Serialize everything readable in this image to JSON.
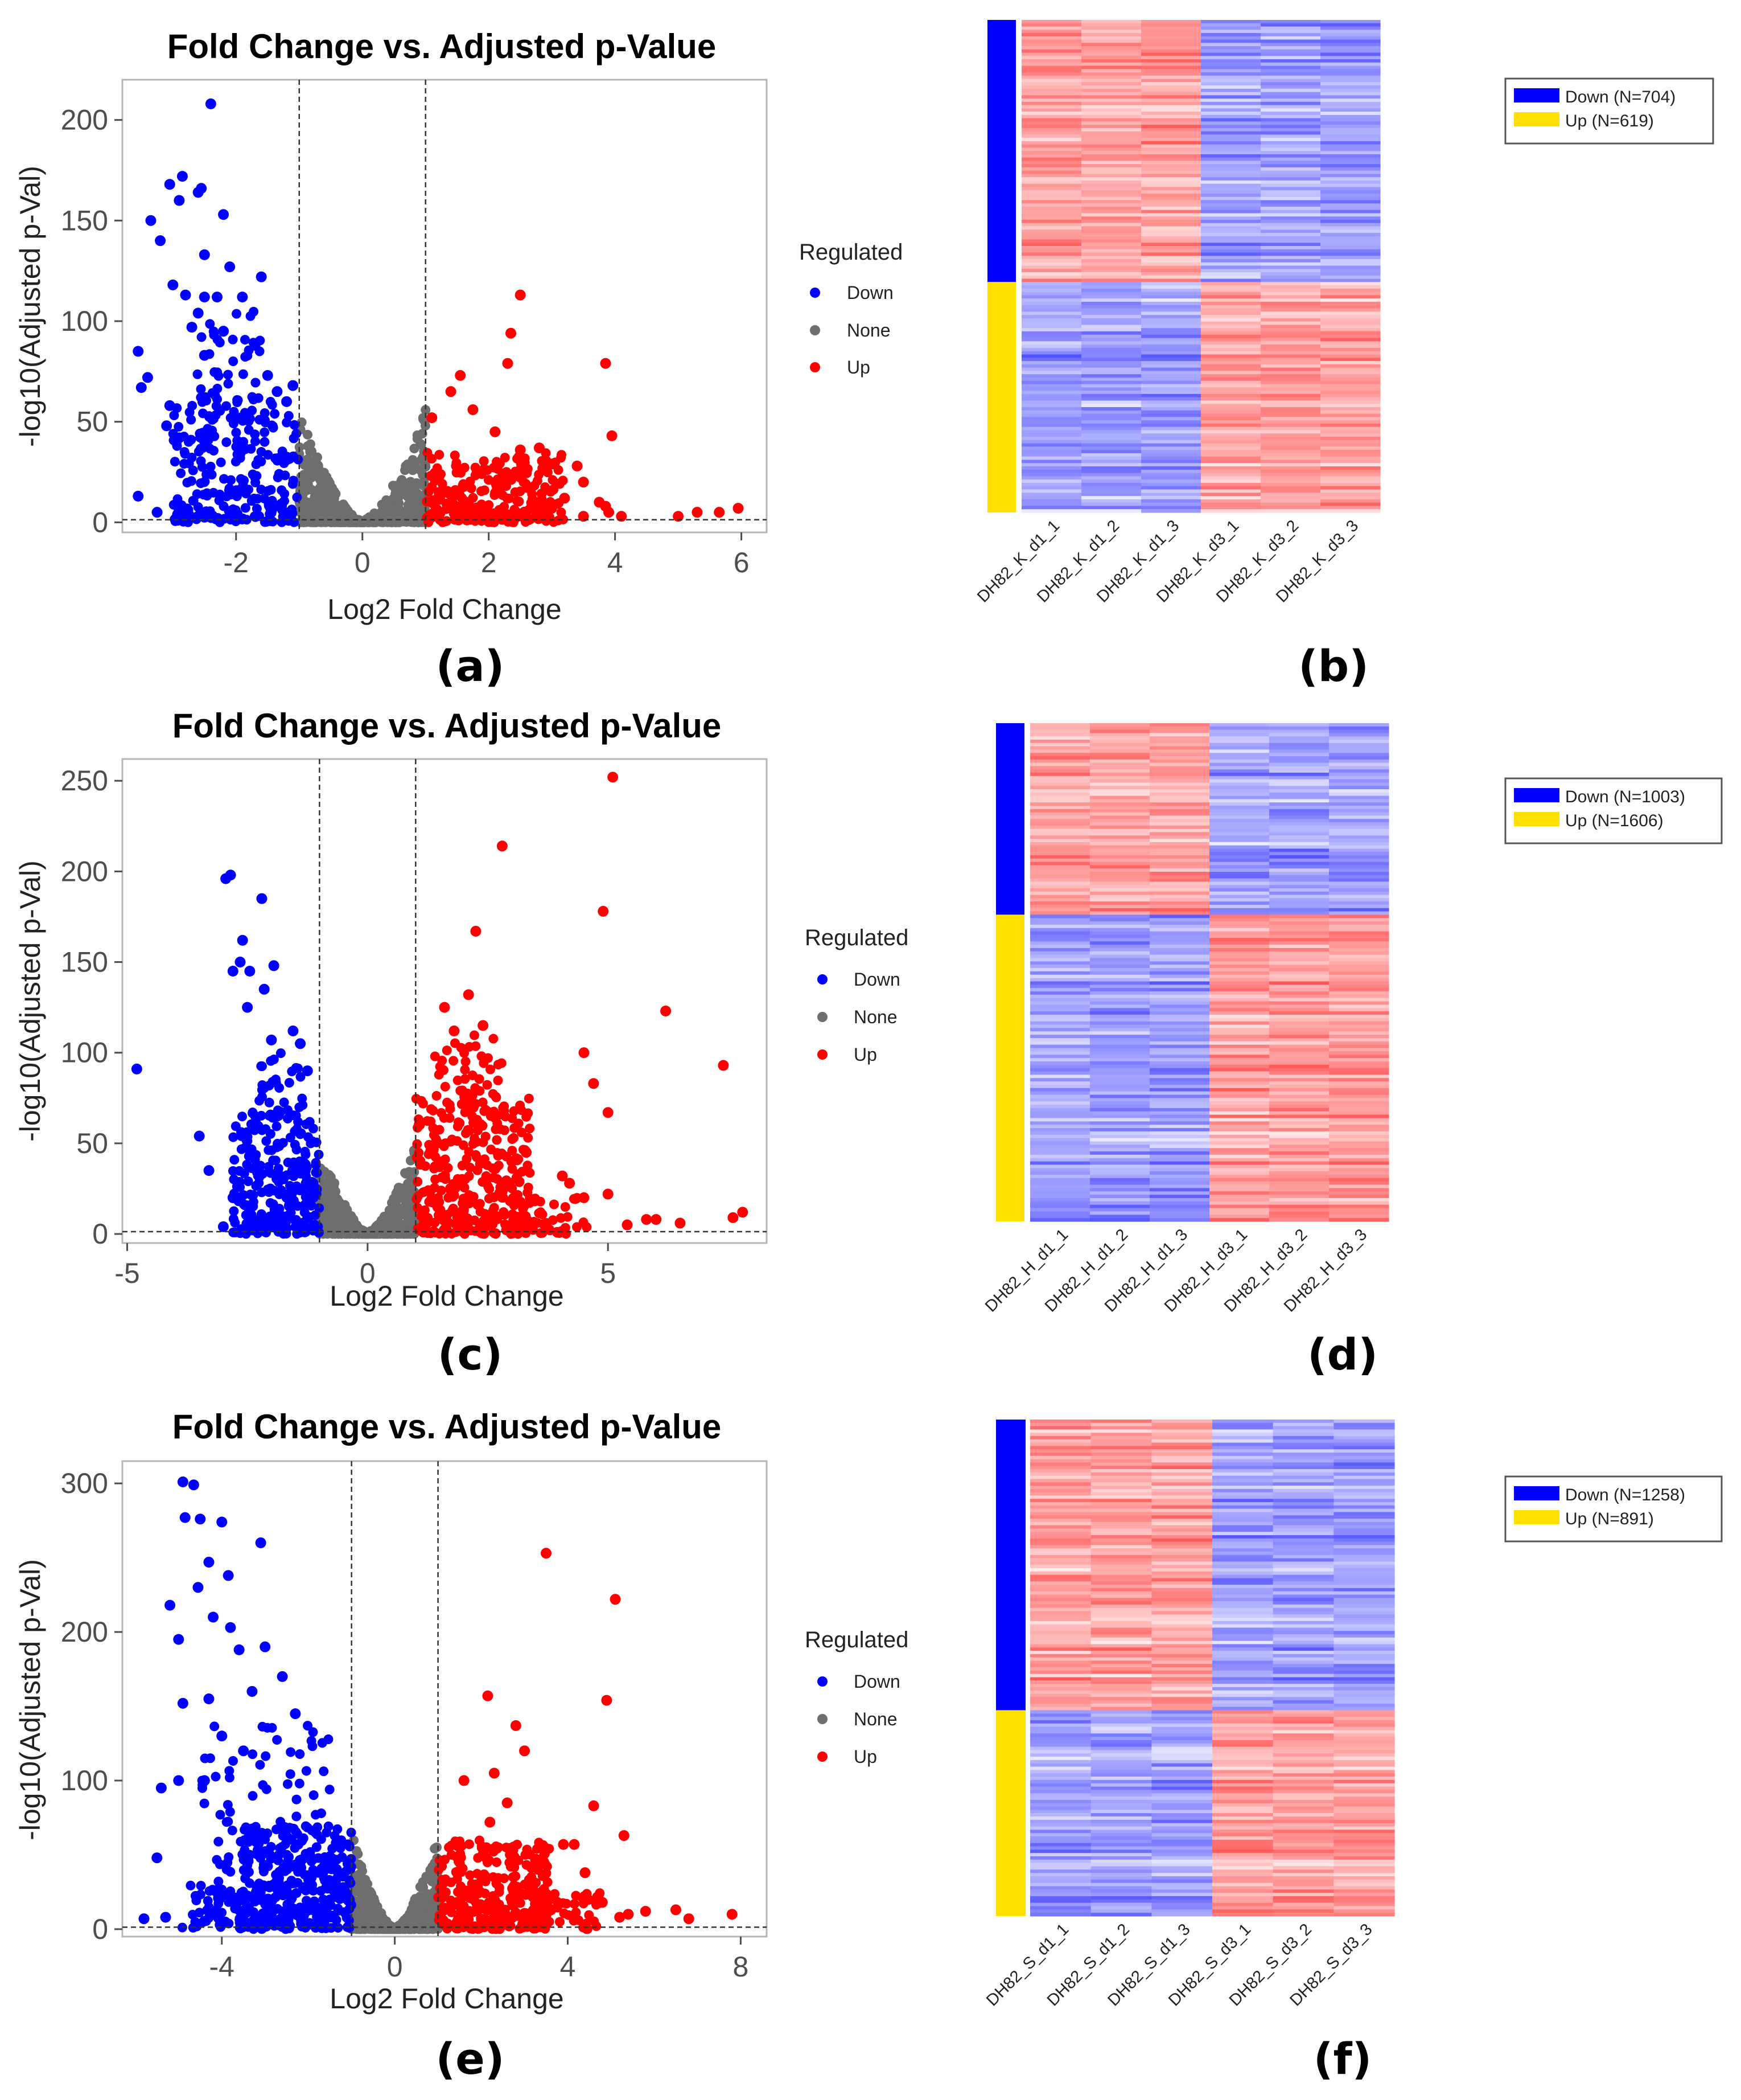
{
  "figure": {
    "labels": [
      "(a)",
      "(b)",
      "(c)",
      "(d)",
      "(e)",
      "(f)"
    ]
  },
  "chart_data": [
    {
      "type": "scatter",
      "panel": "(a)",
      "title": "Fold Change vs. Adjusted p-Value",
      "xlabel": "Log2 Fold Change",
      "ylabel": "-log10(Adjusted p-Val)",
      "xlim": [
        -3.8,
        6.4
      ],
      "ylim": [
        -5,
        220
      ],
      "xticks": [
        -2,
        0,
        2,
        4,
        6
      ],
      "yticks": [
        0,
        50,
        100,
        150,
        200
      ],
      "fc_threshold": 1,
      "padj_line": 1.3,
      "legend_title": "Regulated",
      "legend": [
        "Down",
        "None",
        "Up"
      ],
      "colors": {
        "Down": "#0000ff",
        "None": "#6e6e6e",
        "Up": "#ff0000"
      },
      "series": [
        {
          "name": "Down",
          "points": [
            [
              -2.4,
              208
            ],
            [
              -2.85,
              172
            ],
            [
              -3.05,
              168
            ],
            [
              -2.55,
              166
            ],
            [
              -2.6,
              164
            ],
            [
              -2.9,
              160
            ],
            [
              -3.35,
              150
            ],
            [
              -2.2,
              153
            ],
            [
              -3.2,
              140
            ],
            [
              -2.5,
              133
            ],
            [
              -2.1,
              127
            ],
            [
              -1.6,
              122
            ],
            [
              -2.3,
              112
            ],
            [
              -2.8,
              113
            ],
            [
              -2.5,
              112
            ],
            [
              -3.0,
              118
            ],
            [
              -1.9,
              112
            ],
            [
              -2.6,
              104
            ],
            [
              -2.7,
              97
            ],
            [
              -2.2,
              95
            ],
            [
              -3.55,
              85
            ],
            [
              -1.7,
              88
            ],
            [
              -2.5,
              83
            ],
            [
              -3.4,
              72
            ],
            [
              -3.5,
              67
            ],
            [
              -1.5,
              73
            ],
            [
              -1.35,
              65
            ],
            [
              -3.05,
              58
            ],
            [
              -3.1,
              48
            ],
            [
              -2.9,
              42
            ],
            [
              -3.55,
              13
            ],
            [
              -3.25,
              5
            ],
            [
              -2.9,
              8
            ],
            [
              -2.6,
              3
            ],
            [
              -1.2,
              60
            ],
            [
              -1.1,
              68
            ]
          ],
          "bulk": [
            {
              "x0": -3.0,
              "x1": -1.0,
              "y0": 0,
              "y1": 60,
              "n": 240
            },
            {
              "x0": -2.7,
              "x1": -1.6,
              "y0": 60,
              "y1": 110,
              "n": 40
            }
          ]
        },
        {
          "name": "None",
          "points": [],
          "bulk": [
            {
              "shape": "volcano",
              "x0": -1.0,
              "x1": 1.0,
              "ymax": 55,
              "n": 700
            }
          ]
        },
        {
          "name": "Up",
          "points": [
            [
              2.5,
              113
            ],
            [
              2.35,
              94
            ],
            [
              2.3,
              79
            ],
            [
              1.55,
              73
            ],
            [
              1.4,
              65
            ],
            [
              3.85,
              79
            ],
            [
              1.1,
              52
            ],
            [
              1.75,
              56
            ],
            [
              3.95,
              43
            ],
            [
              2.1,
              45
            ],
            [
              2.5,
              36
            ],
            [
              2.8,
              37
            ],
            [
              3.0,
              29
            ],
            [
              3.4,
              28
            ],
            [
              3.5,
              20
            ],
            [
              3.2,
              12
            ],
            [
              3.85,
              8
            ],
            [
              3.75,
              10
            ],
            [
              5.0,
              3
            ],
            [
              5.3,
              5
            ],
            [
              5.65,
              5
            ],
            [
              5.95,
              7
            ],
            [
              4.1,
              3
            ],
            [
              3.9,
              5
            ],
            [
              3.5,
              3
            ]
          ],
          "bulk": [
            {
              "x0": 1.0,
              "x1": 3.2,
              "y0": 0,
              "y1": 35,
              "n": 240
            }
          ]
        }
      ]
    },
    {
      "type": "heatmap",
      "panel": "(b)",
      "samples": [
        "DH82_K_d1_1",
        "DH82_K_d1_2",
        "DH82_K_d1_3",
        "DH82_K_d3_1",
        "DH82_K_d3_2",
        "DH82_K_d3_3"
      ],
      "groups": [
        {
          "name": "Down",
          "n": 704,
          "color": "#0000ff",
          "label": "Down (N=704)",
          "pattern": [
            "high",
            "high",
            "high",
            "low",
            "low",
            "low"
          ]
        },
        {
          "name": "Up",
          "n": 619,
          "color": "#ffe000",
          "label": "Up (N=619)",
          "pattern": [
            "low",
            "low",
            "low",
            "high",
            "high",
            "high"
          ]
        }
      ],
      "low_color": "#3d3dff",
      "high_color": "#ff4040"
    },
    {
      "type": "scatter",
      "panel": "(c)",
      "title": "Fold Change vs. Adjusted p-Value",
      "xlabel": "Log2 Fold Change",
      "ylabel": "-log10(Adjusted p-Val)",
      "xlim": [
        -5.1,
        8.3
      ],
      "ylim": [
        -5,
        262
      ],
      "xticks": [
        -5,
        0,
        5
      ],
      "yticks": [
        0,
        50,
        100,
        150,
        200,
        250
      ],
      "fc_threshold": 1,
      "padj_line": 1.3,
      "legend_title": "Regulated",
      "legend": [
        "Down",
        "None",
        "Up"
      ],
      "colors": {
        "Down": "#0000ff",
        "None": "#6e6e6e",
        "Up": "#ff0000"
      },
      "series": [
        {
          "name": "Down",
          "points": [
            [
              -2.85,
              198
            ],
            [
              -2.95,
              196
            ],
            [
              -2.2,
              185
            ],
            [
              -2.6,
              162
            ],
            [
              -2.65,
              150
            ],
            [
              -2.8,
              145
            ],
            [
              -2.45,
              145
            ],
            [
              -1.95,
              148
            ],
            [
              -2.15,
              135
            ],
            [
              -2.5,
              125
            ],
            [
              -1.55,
              112
            ],
            [
              -2.0,
              107
            ],
            [
              -4.8,
              91
            ],
            [
              -3.5,
              54
            ],
            [
              -3.3,
              35
            ],
            [
              -2.8,
              20
            ],
            [
              -3.0,
              4
            ],
            [
              -1.4,
              105
            ],
            [
              -1.25,
              90
            ]
          ],
          "bulk": [
            {
              "x0": -2.8,
              "x1": -1.0,
              "y0": 0,
              "y1": 65,
              "n": 240
            },
            {
              "x0": -2.4,
              "x1": -1.3,
              "y0": 65,
              "y1": 100,
              "n": 40
            }
          ]
        },
        {
          "name": "None",
          "points": [],
          "bulk": [
            {
              "shape": "volcano",
              "x0": -1.0,
              "x1": 1.0,
              "ymax": 50,
              "n": 700
            }
          ]
        },
        {
          "name": "Up",
          "points": [
            [
              5.1,
              252
            ],
            [
              2.8,
              214
            ],
            [
              4.9,
              178
            ],
            [
              2.25,
              167
            ],
            [
              6.2,
              123
            ],
            [
              2.1,
              132
            ],
            [
              4.5,
              100
            ],
            [
              4.7,
              83
            ],
            [
              7.4,
              93
            ],
            [
              5.0,
              67
            ],
            [
              3.3,
              45
            ],
            [
              3.0,
              40
            ],
            [
              4.05,
              32
            ],
            [
              4.2,
              28
            ],
            [
              5.0,
              22
            ],
            [
              4.5,
              20
            ],
            [
              5.8,
              8
            ],
            [
              6.0,
              8
            ],
            [
              6.5,
              6
            ],
            [
              7.6,
              9
            ],
            [
              7.8,
              12
            ],
            [
              5.4,
              5
            ],
            [
              1.8,
              112
            ],
            [
              2.4,
              115
            ],
            [
              1.6,
              125
            ]
          ],
          "bulk": [
            {
              "x0": 1.0,
              "x1": 3.4,
              "y0": 0,
              "y1": 75,
              "n": 320
            },
            {
              "x0": 1.2,
              "x1": 2.8,
              "y0": 75,
              "y1": 110,
              "n": 40
            },
            {
              "x0": 3.0,
              "x1": 4.6,
              "y0": 0,
              "y1": 20,
              "n": 50
            }
          ]
        }
      ]
    },
    {
      "type": "heatmap",
      "panel": "(d)",
      "samples": [
        "DH82_H_d1_1",
        "DH82_H_d1_2",
        "DH82_H_d1_3",
        "DH82_H_d3_1",
        "DH82_H_d3_2",
        "DH82_H_d3_3"
      ],
      "groups": [
        {
          "name": "Down",
          "n": 1003,
          "color": "#0000ff",
          "label": "Down (N=1003)",
          "pattern": [
            "high",
            "high",
            "high",
            "low",
            "low",
            "low"
          ]
        },
        {
          "name": "Up",
          "n": 1606,
          "color": "#ffe000",
          "label": "Up (N=1606)",
          "pattern": [
            "low",
            "low",
            "low",
            "high",
            "high",
            "high"
          ]
        }
      ],
      "low_color": "#3d3dff",
      "high_color": "#ff4040"
    },
    {
      "type": "scatter",
      "panel": "(e)",
      "title": "Fold Change vs. Adjusted p-Value",
      "xlabel": "Log2 Fold Change",
      "ylabel": "-log10(Adjusted p-Val)",
      "xlim": [
        -6.3,
        8.6
      ],
      "ylim": [
        -5,
        315
      ],
      "xticks": [
        -4,
        0,
        4,
        8
      ],
      "yticks": [
        0,
        100,
        200,
        300
      ],
      "fc_threshold": 1,
      "padj_line": 1.3,
      "legend_title": "Regulated",
      "legend": [
        "Down",
        "None",
        "Up"
      ],
      "colors": {
        "Down": "#0000ff",
        "None": "#6e6e6e",
        "Up": "#ff0000"
      },
      "series": [
        {
          "name": "Down",
          "points": [
            [
              -4.9,
              301
            ],
            [
              -4.65,
              299
            ],
            [
              -4.85,
              277
            ],
            [
              -4.5,
              276
            ],
            [
              -4.0,
              274
            ],
            [
              -3.1,
              260
            ],
            [
              -4.3,
              247
            ],
            [
              -3.85,
              238
            ],
            [
              -4.55,
              230
            ],
            [
              -5.2,
              218
            ],
            [
              -4.2,
              210
            ],
            [
              -3.8,
              203
            ],
            [
              -5.0,
              195
            ],
            [
              -3.0,
              190
            ],
            [
              -3.6,
              188
            ],
            [
              -4.9,
              152
            ],
            [
              -4.3,
              155
            ],
            [
              -5.5,
              48
            ],
            [
              -5.4,
              95
            ],
            [
              -5.8,
              7
            ],
            [
              -5.3,
              8
            ],
            [
              -3.3,
              160
            ],
            [
              -2.6,
              170
            ],
            [
              -2.3,
              145
            ],
            [
              -4.0,
              130
            ],
            [
              -3.5,
              120
            ],
            [
              -5.0,
              100
            ],
            [
              -4.4,
              100
            ]
          ],
          "bulk": [
            {
              "x0": -3.6,
              "x1": -1.0,
              "y0": 0,
              "y1": 70,
              "n": 320
            },
            {
              "x0": -4.5,
              "x1": -1.5,
              "y0": 0,
              "y1": 140,
              "n": 120
            },
            {
              "x0": -5.0,
              "x1": -3.5,
              "y0": 0,
              "y1": 30,
              "n": 30
            }
          ]
        },
        {
          "name": "None",
          "points": [],
          "bulk": [
            {
              "shape": "volcano",
              "x0": -1.0,
              "x1": 1.0,
              "ymax": 65,
              "n": 700
            }
          ]
        },
        {
          "name": "Up",
          "points": [
            [
              3.5,
              253
            ],
            [
              5.1,
              222
            ],
            [
              2.15,
              157
            ],
            [
              4.9,
              154
            ],
            [
              2.8,
              137
            ],
            [
              3.0,
              120
            ],
            [
              2.3,
              105
            ],
            [
              1.6,
              100
            ],
            [
              4.6,
              83
            ],
            [
              3.9,
              57
            ],
            [
              4.15,
              57
            ],
            [
              4.4,
              38
            ],
            [
              5.3,
              63
            ],
            [
              2.2,
              72
            ],
            [
              2.6,
              85
            ],
            [
              5.4,
              10
            ],
            [
              5.8,
              12
            ],
            [
              6.5,
              13
            ],
            [
              6.8,
              7
            ],
            [
              7.8,
              10
            ],
            [
              5.2,
              8
            ],
            [
              4.8,
              18
            ]
          ],
          "bulk": [
            {
              "x0": 1.0,
              "x1": 3.6,
              "y0": 0,
              "y1": 60,
              "n": 300
            },
            {
              "x0": 3.4,
              "x1": 4.8,
              "y0": 0,
              "y1": 25,
              "n": 40
            }
          ]
        }
      ]
    },
    {
      "type": "heatmap",
      "panel": "(f)",
      "samples": [
        "DH82_S_d1_1",
        "DH82_S_d1_2",
        "DH82_S_d1_3",
        "DH82_S_d3_1",
        "DH82_S_d3_2",
        "DH82_S_d3_3"
      ],
      "groups": [
        {
          "name": "Down",
          "n": 1258,
          "color": "#0000ff",
          "label": "Down (N=1258)",
          "pattern": [
            "high",
            "high",
            "high",
            "low",
            "low",
            "low"
          ]
        },
        {
          "name": "Up",
          "n": 891,
          "color": "#ffe000",
          "label": "Up (N=891)",
          "pattern": [
            "low",
            "low",
            "low",
            "high",
            "high",
            "high"
          ]
        }
      ],
      "low_color": "#3d3dff",
      "high_color": "#ff4040"
    }
  ]
}
